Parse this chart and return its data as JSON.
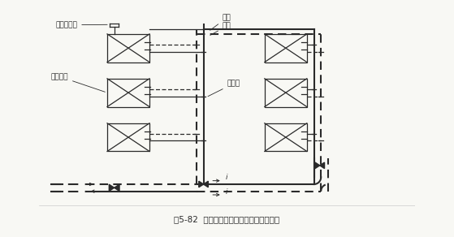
{
  "title": "图5-82  下供下回异程空调水管道系统图式",
  "bg_color": "#f8f8f4",
  "line_color": "#2a2a2a",
  "labels": {
    "shoudong": "手动放风门",
    "kongtiao": "空调设备",
    "huishui": "回水",
    "gongshui": "供水",
    "ningjie": "凝结水",
    "slope_i": "i"
  },
  "figsize": [
    5.59,
    2.92
  ],
  "dpi": 100
}
